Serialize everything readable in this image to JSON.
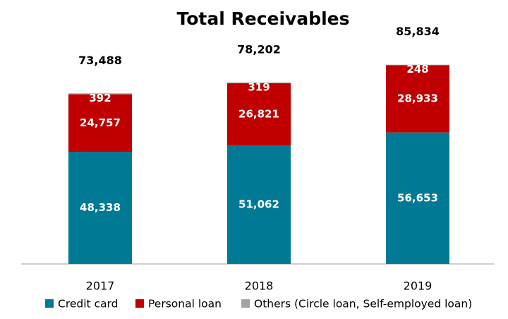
{
  "chart_data": {
    "type": "stacked_bar",
    "title": "Total Receivables",
    "categories": [
      "2017",
      "2018",
      "2019"
    ],
    "series": [
      {
        "name": "Credit card",
        "color": "#007a94",
        "values": [
          48338,
          51062,
          56653
        ],
        "value_labels": [
          "48,338",
          "51,062",
          "56,653"
        ]
      },
      {
        "name": "Personal loan",
        "color": "#c00000",
        "values": [
          24757,
          26821,
          28933
        ],
        "value_labels": [
          "24,757",
          "26,821",
          "28,933"
        ]
      },
      {
        "name": "Others (Circle loan, Self-employed loan)",
        "color": "#a6a2a2",
        "values": [
          392,
          319,
          248
        ],
        "value_labels": [
          "392",
          "319",
          "248"
        ]
      }
    ],
    "totals": {
      "values": [
        73488,
        78202,
        85834
      ],
      "value_labels": [
        "73,488",
        "78,202",
        "85,834"
      ]
    },
    "ylim": [
      0,
      90000
    ],
    "legend": "bottom"
  }
}
